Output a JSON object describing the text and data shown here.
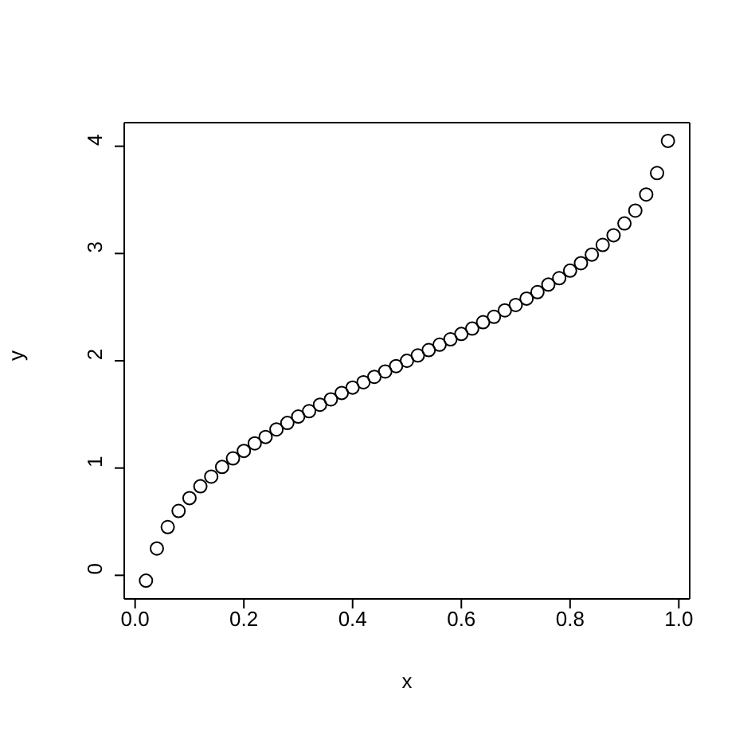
{
  "chart_data": {
    "type": "scatter",
    "xlabel": "x",
    "ylabel": "y",
    "x": [
      0.02,
      0.04,
      0.06,
      0.08,
      0.1,
      0.12,
      0.14,
      0.16,
      0.18,
      0.2,
      0.22,
      0.24,
      0.26,
      0.28,
      0.3,
      0.32,
      0.34,
      0.36,
      0.38,
      0.4,
      0.42,
      0.44,
      0.46,
      0.48,
      0.5,
      0.52,
      0.54,
      0.56,
      0.58,
      0.6,
      0.62,
      0.64,
      0.66,
      0.68,
      0.7,
      0.72,
      0.74,
      0.76,
      0.78,
      0.8,
      0.82,
      0.84,
      0.86,
      0.88,
      0.9,
      0.92,
      0.94,
      0.96,
      0.98
    ],
    "values": [
      -0.05,
      0.25,
      0.45,
      0.6,
      0.72,
      0.83,
      0.92,
      1.01,
      1.09,
      1.16,
      1.23,
      1.29,
      1.36,
      1.42,
      1.48,
      1.53,
      1.59,
      1.64,
      1.7,
      1.75,
      1.8,
      1.85,
      1.9,
      1.95,
      2.0,
      2.05,
      2.1,
      2.15,
      2.2,
      2.25,
      2.3,
      2.36,
      2.41,
      2.47,
      2.52,
      2.58,
      2.64,
      2.71,
      2.77,
      2.84,
      2.91,
      2.99,
      3.08,
      3.17,
      3.28,
      3.4,
      3.55,
      3.75,
      4.05
    ],
    "color": "#000000",
    "marker": "circle",
    "xlim": [
      -0.02,
      1.02
    ],
    "xticks": [
      {
        "value": 0,
        "label": "0.0"
      },
      {
        "value": 0.2,
        "label": "0.2"
      },
      {
        "value": 0.4,
        "label": "0.4"
      },
      {
        "value": 0.6,
        "label": "0.6"
      },
      {
        "value": 0.8,
        "label": "0.8"
      },
      {
        "value": 1,
        "label": "1.0"
      }
    ],
    "ylim": [
      -0.22,
      4.22
    ],
    "yticks": [
      0,
      1,
      2,
      3,
      4
    ]
  }
}
